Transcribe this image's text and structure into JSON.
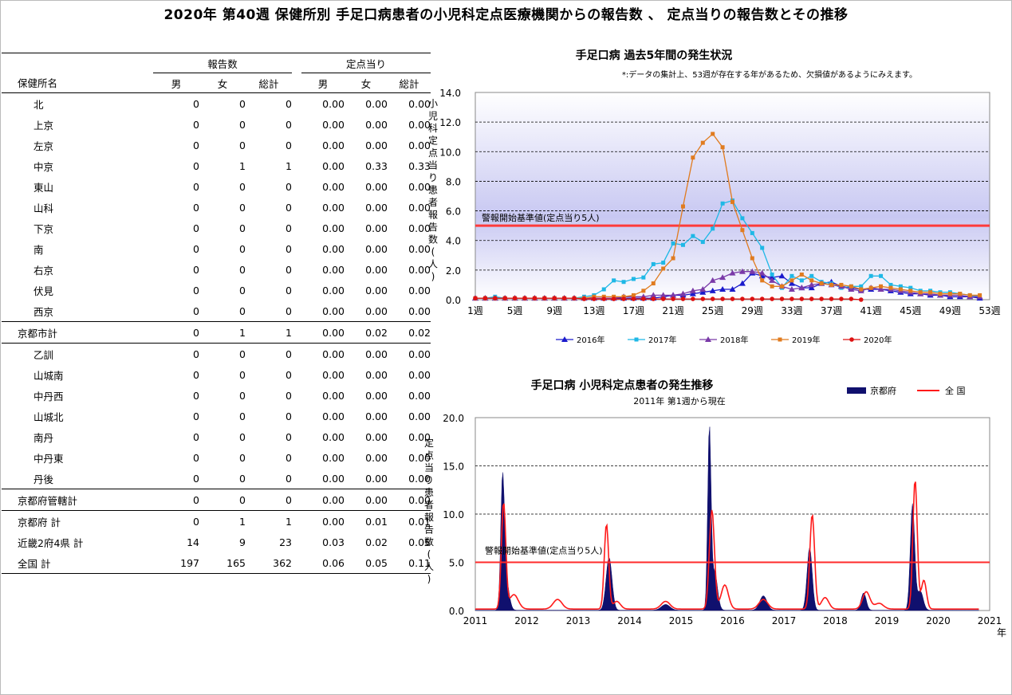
{
  "title": "2020年 第40週 保健所別 手足口病患者の小児科定点医療機関からの報告数 、 定点当りの報告数とその推移",
  "table": {
    "group_headers": [
      "報告数",
      "定点当り"
    ],
    "col_headers": [
      "保健所名",
      "男",
      "女",
      "総計",
      "男",
      "女",
      "総計"
    ],
    "rows": [
      {
        "name": "北",
        "v": [
          "0",
          "0",
          "0",
          "0.00",
          "0.00",
          "0.00"
        ]
      },
      {
        "name": "上京",
        "v": [
          "0",
          "0",
          "0",
          "0.00",
          "0.00",
          "0.00"
        ]
      },
      {
        "name": "左京",
        "v": [
          "0",
          "0",
          "0",
          "0.00",
          "0.00",
          "0.00"
        ]
      },
      {
        "name": "中京",
        "v": [
          "0",
          "1",
          "1",
          "0.00",
          "0.33",
          "0.33"
        ]
      },
      {
        "name": "東山",
        "v": [
          "0",
          "0",
          "0",
          "0.00",
          "0.00",
          "0.00"
        ]
      },
      {
        "name": "山科",
        "v": [
          "0",
          "0",
          "0",
          "0.00",
          "0.00",
          "0.00"
        ]
      },
      {
        "name": "下京",
        "v": [
          "0",
          "0",
          "0",
          "0.00",
          "0.00",
          "0.00"
        ]
      },
      {
        "name": "南",
        "v": [
          "0",
          "0",
          "0",
          "0.00",
          "0.00",
          "0.00"
        ]
      },
      {
        "name": "右京",
        "v": [
          "0",
          "0",
          "0",
          "0.00",
          "0.00",
          "0.00"
        ]
      },
      {
        "name": "伏見",
        "v": [
          "0",
          "0",
          "0",
          "0.00",
          "0.00",
          "0.00"
        ]
      },
      {
        "name": "西京",
        "v": [
          "0",
          "0",
          "0",
          "0.00",
          "0.00",
          "0.00"
        ]
      },
      {
        "name": "京都市計",
        "v": [
          "0",
          "1",
          "1",
          "0.00",
          "0.02",
          "0.02"
        ]
      },
      {
        "name": "乙訓",
        "v": [
          "0",
          "0",
          "0",
          "0.00",
          "0.00",
          "0.00"
        ]
      },
      {
        "name": "山城南",
        "v": [
          "0",
          "0",
          "0",
          "0.00",
          "0.00",
          "0.00"
        ]
      },
      {
        "name": "中丹西",
        "v": [
          "0",
          "0",
          "0",
          "0.00",
          "0.00",
          "0.00"
        ]
      },
      {
        "name": "山城北",
        "v": [
          "0",
          "0",
          "0",
          "0.00",
          "0.00",
          "0.00"
        ]
      },
      {
        "name": "南丹",
        "v": [
          "0",
          "0",
          "0",
          "0.00",
          "0.00",
          "0.00"
        ]
      },
      {
        "name": "中丹東",
        "v": [
          "0",
          "0",
          "0",
          "0.00",
          "0.00",
          "0.00"
        ]
      },
      {
        "name": "丹後",
        "v": [
          "0",
          "0",
          "0",
          "0.00",
          "0.00",
          "0.00"
        ]
      },
      {
        "name": "京都府管轄計",
        "v": [
          "0",
          "0",
          "0",
          "0.00",
          "0.00",
          "0.00"
        ]
      },
      {
        "name": "京都府 計",
        "v": [
          "0",
          "1",
          "1",
          "0.00",
          "0.01",
          "0.01"
        ]
      },
      {
        "name": "近畿2府4県 計",
        "v": [
          "14",
          "9",
          "23",
          "0.03",
          "0.02",
          "0.05"
        ]
      },
      {
        "name": "全国 計",
        "v": [
          "197",
          "165",
          "362",
          "0.06",
          "0.05",
          "0.11"
        ]
      }
    ]
  },
  "chart1": {
    "title": "手足口病 過去5年間の発生状況",
    "note": "*:データの集計上、53週が存在する年があるため、欠損値があるようにみえます。",
    "ylabel": "小児科定点当り患者報告数(人)",
    "threshold_label": "警報開始基準値(定点当り5人)",
    "threshold_color": "#ff3b3b"
  },
  "chart2": {
    "title": "手足口病 小児科定点患者の発生推移",
    "subtitle": "2011年 第1週から現在",
    "ylabel": "定点当り患者報告数(人)",
    "threshold_label": "警報開始基準値(定点当り5人)",
    "x_unit": "年",
    "legend": [
      "京都府",
      "全 国"
    ]
  },
  "chart_data": [
    {
      "type": "line",
      "title": "手足口病 過去5年間の発生状況",
      "ylabel": "小児科定点当り患者報告数(人)",
      "ylim": [
        0,
        14
      ],
      "yticks": [
        "0.0",
        "2.0",
        "4.0",
        "6.0",
        "8.0",
        "10.0",
        "12.0",
        "14.0"
      ],
      "xrange": [
        1,
        53
      ],
      "xticks": [
        "1週",
        "5週",
        "9週",
        "13週",
        "17週",
        "21週",
        "25週",
        "29週",
        "33週",
        "37週",
        "41週",
        "45週",
        "49週",
        "53週"
      ],
      "threshold": 5,
      "series": [
        {
          "name": "2016年",
          "color": "#1a1acc",
          "marker": "triangle",
          "values": [
            0.1,
            0.1,
            0.1,
            0.1,
            0.1,
            0.1,
            0.1,
            0.1,
            0.1,
            0.1,
            0.1,
            0.1,
            0.1,
            0.1,
            0.1,
            0.1,
            0.1,
            0.1,
            0.1,
            0.2,
            0.3,
            0.3,
            0.4,
            0.5,
            0.6,
            0.7,
            0.7,
            1.1,
            1.8,
            1.6,
            1.5,
            1.6,
            1.1,
            0.8,
            0.8,
            1.1,
            1.2,
            0.9,
            0.8,
            0.7,
            0.7,
            0.7,
            0.6,
            0.5,
            0.4,
            0.4,
            0.3,
            0.3,
            0.2,
            0.2,
            0.2,
            0.1
          ]
        },
        {
          "name": "2017年",
          "color": "#1fb8e6",
          "marker": "square",
          "values": [
            0.1,
            0.1,
            0.2,
            0.1,
            0.1,
            0.1,
            0.1,
            0.1,
            0.1,
            0.1,
            0.1,
            0.2,
            0.3,
            0.7,
            1.3,
            1.2,
            1.4,
            1.5,
            2.4,
            2.5,
            3.8,
            3.7,
            4.3,
            3.9,
            4.8,
            6.5,
            6.7,
            5.5,
            4.5,
            3.5,
            1.7,
            0.8,
            1.6,
            1.3,
            1.6,
            1.2,
            1.1,
            0.8,
            0.9,
            0.9,
            1.6,
            1.6,
            1.0,
            0.9,
            0.8,
            0.6,
            0.6,
            0.5,
            0.5,
            0.4,
            0.3,
            0.2
          ]
        },
        {
          "name": "2018年",
          "color": "#7a3aa8",
          "marker": "triangle",
          "values": [
            0.1,
            0.1,
            0.1,
            0.1,
            0.1,
            0.1,
            0.1,
            0.1,
            0.1,
            0.1,
            0.1,
            0.1,
            0.1,
            0.1,
            0.1,
            0.2,
            0.2,
            0.2,
            0.3,
            0.3,
            0.3,
            0.4,
            0.6,
            0.7,
            1.3,
            1.5,
            1.8,
            1.9,
            1.9,
            1.8,
            1.3,
            0.9,
            0.7,
            0.8,
            1.0,
            1.1,
            1.0,
            0.9,
            0.7,
            0.6,
            0.8,
            0.7,
            0.7,
            0.6,
            0.5,
            0.4,
            0.4,
            0.3,
            0.3,
            0.3,
            0.2,
            0.2
          ]
        },
        {
          "name": "2019年",
          "color": "#e07b1f",
          "marker": "square",
          "values": [
            0.1,
            0.1,
            0.1,
            0.1,
            0.1,
            0.1,
            0.1,
            0.1,
            0.1,
            0.1,
            0.1,
            0.1,
            0.2,
            0.2,
            0.2,
            0.2,
            0.3,
            0.6,
            1.1,
            2.1,
            2.8,
            6.3,
            9.6,
            10.6,
            11.2,
            10.3,
            6.6,
            4.7,
            2.8,
            1.3,
            0.9,
            0.9,
            1.3,
            1.7,
            1.3,
            1.1,
            1.0,
            1.0,
            0.9,
            0.7,
            0.8,
            0.9,
            0.8,
            0.7,
            0.6,
            0.5,
            0.5,
            0.4,
            0.4,
            0.4,
            0.3,
            0.3
          ]
        },
        {
          "name": "2020年",
          "color": "#dd1111",
          "marker": "circle",
          "values": [
            0.1,
            0.1,
            0.1,
            0.1,
            0.1,
            0.1,
            0.1,
            0.1,
            0.1,
            0.1,
            0.1,
            0.05,
            0.05,
            0.05,
            0.05,
            0.05,
            0.05,
            0.05,
            0.05,
            0.05,
            0.05,
            0.05,
            0.05,
            0.05,
            0.05,
            0.05,
            0.05,
            0.05,
            0.05,
            0.05,
            0.05,
            0.05,
            0.05,
            0.05,
            0.05,
            0.05,
            0.05,
            0.05,
            0.05,
            0.0
          ]
        }
      ]
    },
    {
      "type": "area",
      "title": "手足口病 小児科定点患者の発生推移",
      "ylabel": "定点当り患者報告数(人)",
      "ylim": [
        0,
        20
      ],
      "yticks": [
        "0.0",
        "5.0",
        "10.0",
        "15.0",
        "20.0"
      ],
      "xrange": [
        2011,
        2021
      ],
      "xticks": [
        "2011",
        "2012",
        "2013",
        "2014",
        "2015",
        "2016",
        "2017",
        "2018",
        "2019",
        "2020",
        "2021"
      ],
      "threshold": 5,
      "series": [
        {
          "name": "京都府",
          "color": "#10106e",
          "kind": "area",
          "peaks": [
            {
              "year": 2011.53,
              "height": 13.0,
              "width": 0.05
            },
            {
              "year": 2011.6,
              "height": 3.0,
              "width": 0.08
            },
            {
              "year": 2013.6,
              "height": 5.5,
              "width": 0.08
            },
            {
              "year": 2014.7,
              "height": 0.6,
              "width": 0.12
            },
            {
              "year": 2015.55,
              "height": 18.5,
              "width": 0.045
            },
            {
              "year": 2015.65,
              "height": 4.0,
              "width": 0.08
            },
            {
              "year": 2016.6,
              "height": 1.5,
              "width": 0.1
            },
            {
              "year": 2017.5,
              "height": 6.5,
              "width": 0.07
            },
            {
              "year": 2018.55,
              "height": 1.8,
              "width": 0.07
            },
            {
              "year": 2019.5,
              "height": 11.0,
              "width": 0.06
            },
            {
              "year": 2019.65,
              "height": 2.0,
              "width": 0.08
            }
          ]
        },
        {
          "name": "全 国",
          "color": "#ff1a1a",
          "kind": "line",
          "peaks": [
            {
              "year": 2011.55,
              "height": 11.0,
              "width": 0.06
            },
            {
              "year": 2011.75,
              "height": 1.5,
              "width": 0.12
            },
            {
              "year": 2012.6,
              "height": 1.0,
              "width": 0.12
            },
            {
              "year": 2013.55,
              "height": 8.8,
              "width": 0.06
            },
            {
              "year": 2013.75,
              "height": 0.8,
              "width": 0.1
            },
            {
              "year": 2014.7,
              "height": 0.8,
              "width": 0.12
            },
            {
              "year": 2015.6,
              "height": 10.3,
              "width": 0.07
            },
            {
              "year": 2015.85,
              "height": 2.5,
              "width": 0.1
            },
            {
              "year": 2016.6,
              "height": 1.0,
              "width": 0.12
            },
            {
              "year": 2017.55,
              "height": 9.8,
              "width": 0.065
            },
            {
              "year": 2017.8,
              "height": 1.2,
              "width": 0.1
            },
            {
              "year": 2018.6,
              "height": 1.8,
              "width": 0.1
            },
            {
              "year": 2018.85,
              "height": 0.6,
              "width": 0.12
            },
            {
              "year": 2019.55,
              "height": 13.4,
              "width": 0.06
            },
            {
              "year": 2019.72,
              "height": 3.0,
              "width": 0.07
            }
          ]
        }
      ]
    }
  ]
}
